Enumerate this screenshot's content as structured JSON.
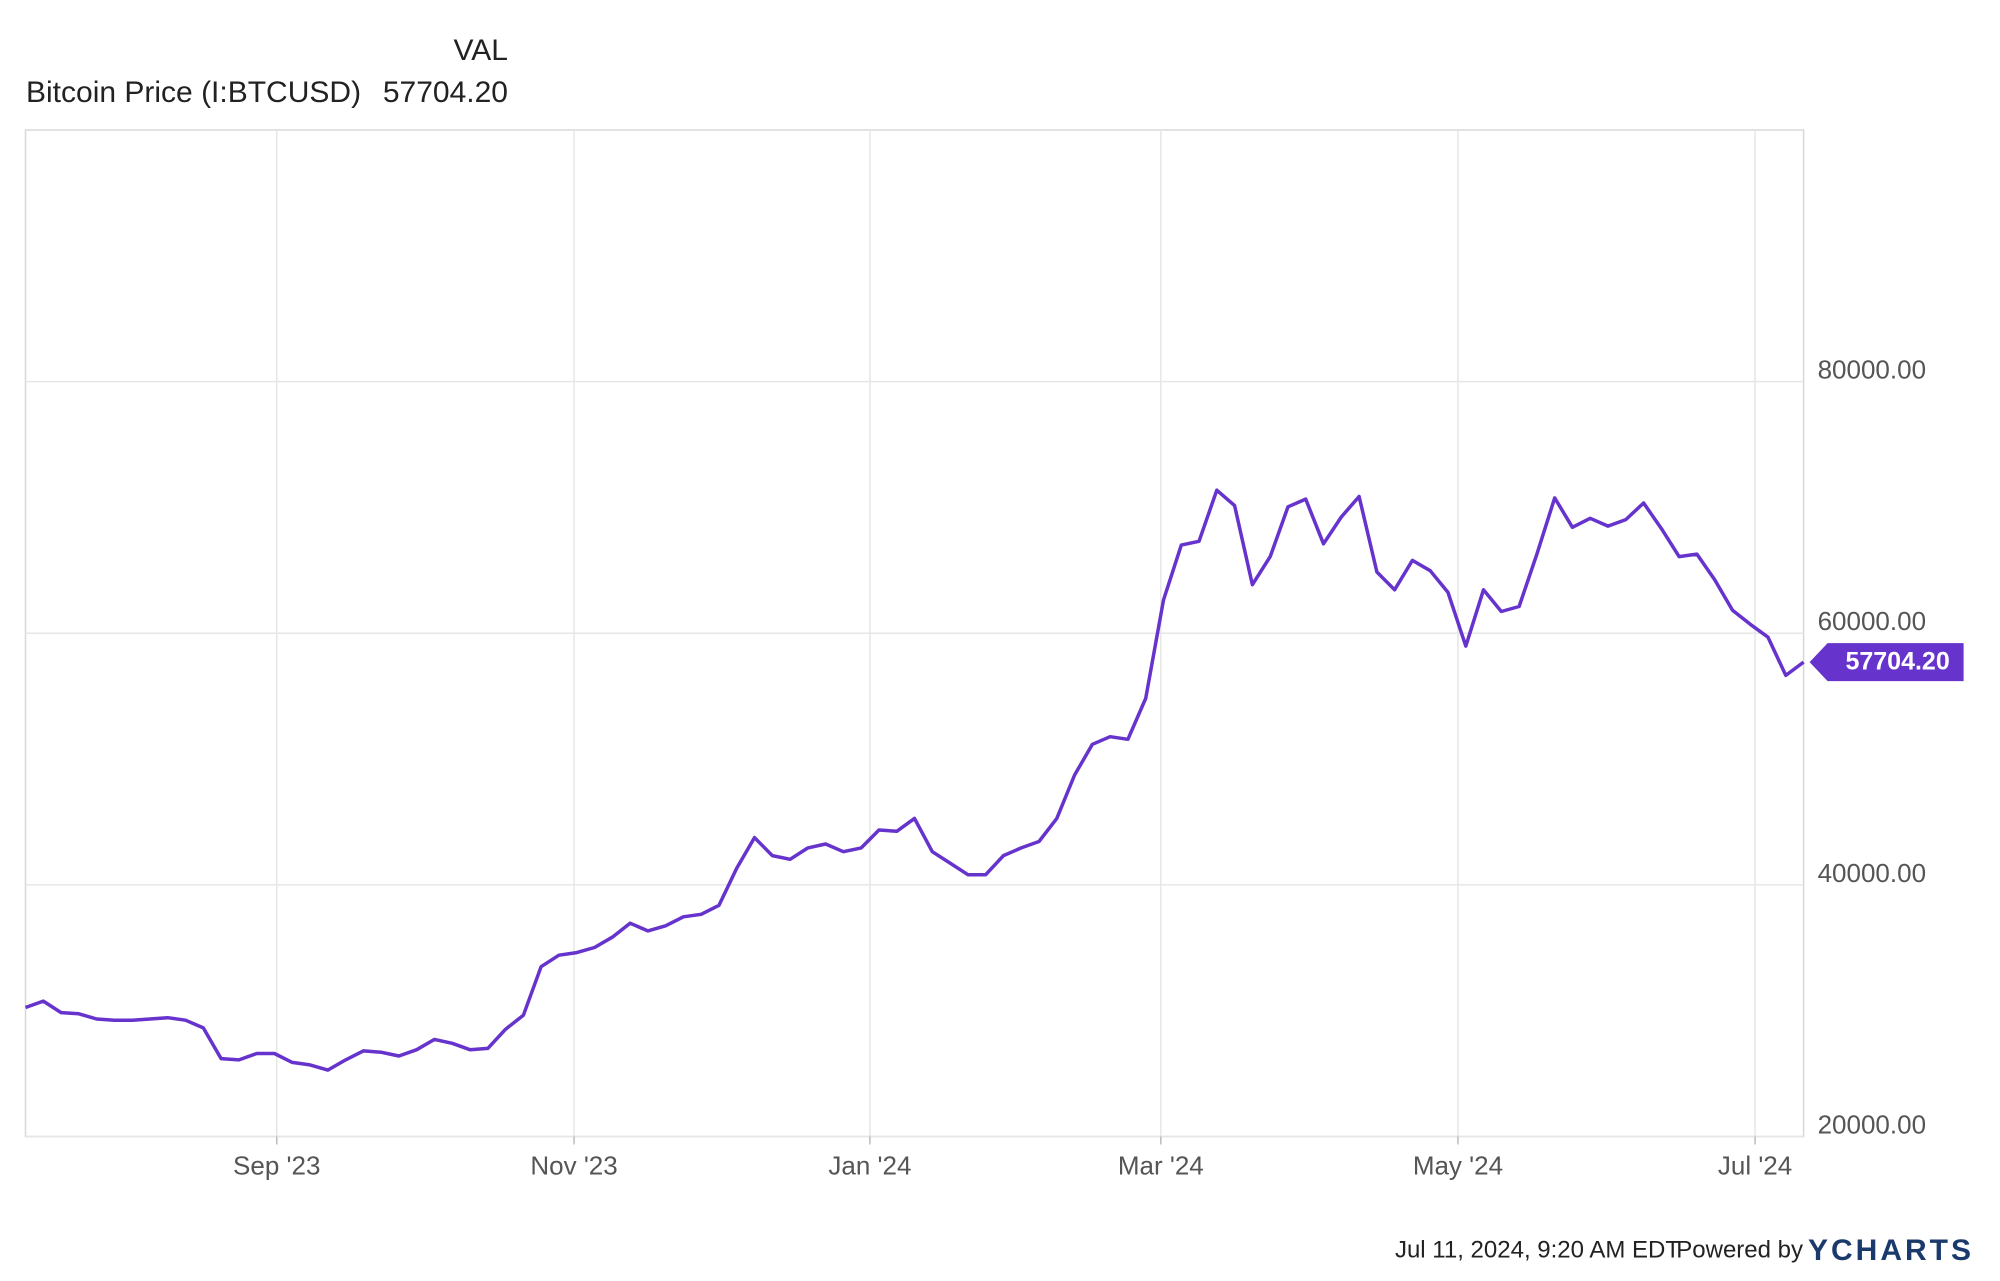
{
  "chart_data": {
    "type": "line",
    "column_label": "VAL",
    "categories": [
      null,
      null,
      null,
      null,
      null,
      null,
      null,
      null,
      null,
      null,
      null,
      null,
      null,
      null,
      null,
      null,
      null,
      null,
      null,
      null,
      null,
      null,
      null,
      null,
      null,
      null,
      null,
      null,
      null,
      null,
      null,
      null,
      null,
      null,
      null,
      null,
      null,
      null,
      null,
      null,
      null,
      null,
      null,
      null,
      null,
      null,
      null,
      null,
      null,
      null,
      null,
      null,
      null,
      null,
      null,
      null,
      null,
      null,
      null,
      null,
      null,
      null,
      null,
      null,
      null,
      null,
      null,
      null,
      null,
      null,
      null,
      null,
      null,
      null,
      null,
      null,
      null,
      null,
      null,
      null,
      null,
      null,
      null,
      null,
      null,
      null,
      null,
      null,
      null,
      null,
      null,
      null,
      null,
      null,
      null,
      null,
      null,
      null,
      null,
      null,
      null
    ],
    "series": [
      {
        "name": "Bitcoin Price (I:BTCUSD)",
        "color": "#6633cc",
        "values": [
          30250,
          30760,
          29850,
          29750,
          29340,
          29240,
          29240,
          29340,
          29440,
          29240,
          28630,
          26190,
          26090,
          26600,
          26600,
          25890,
          25690,
          25280,
          26090,
          26800,
          26700,
          26400,
          26900,
          27720,
          27410,
          26900,
          27000,
          28530,
          29640,
          33500,
          34410,
          34620,
          35020,
          35840,
          36950,
          36340,
          36750,
          37460,
          37660,
          38380,
          41320,
          43760,
          42330,
          42030,
          42940,
          43250,
          42640,
          42940,
          44360,
          44260,
          45280,
          42640,
          41730,
          40810,
          40810,
          42330,
          42940,
          43450,
          45280,
          48730,
          51170,
          51780,
          51570,
          54820,
          62640,
          67010,
          67310,
          71370,
          70150,
          63860,
          66090,
          70050,
          70660,
          67110,
          69240,
          70870,
          64870,
          63450,
          65790,
          64970,
          63250,
          58980,
          63450,
          61730,
          62130,
          66290,
          70760,
          68420,
          69140,
          68520,
          69030,
          70350,
          68320,
          66090,
          66290,
          64260,
          61830,
          60710,
          59690,
          56650,
          57704.2
        ],
        "value_labels": [
          null,
          null,
          null,
          null,
          null,
          null,
          null,
          null,
          null,
          null,
          null,
          null,
          null,
          null,
          null,
          null,
          null,
          null,
          null,
          null,
          null,
          null,
          null,
          null,
          null,
          null,
          null,
          null,
          null,
          null,
          null,
          null,
          null,
          null,
          null,
          null,
          null,
          null,
          null,
          null,
          null,
          null,
          null,
          null,
          null,
          null,
          null,
          null,
          null,
          null,
          null,
          null,
          null,
          null,
          null,
          null,
          null,
          null,
          null,
          null,
          null,
          null,
          null,
          null,
          null,
          null,
          null,
          null,
          null,
          null,
          null,
          null,
          null,
          null,
          null,
          null,
          null,
          null,
          null,
          null,
          null,
          null,
          null,
          null,
          null,
          null,
          null,
          null,
          null,
          null,
          null,
          null,
          null,
          null,
          null,
          null,
          null,
          null,
          null,
          null,
          "57704.20"
        ]
      }
    ],
    "xticks": [
      {
        "value": 14.13,
        "label": "Sep '23"
      },
      {
        "value": 30.85,
        "label": "Nov '23"
      },
      {
        "value": 47.49,
        "label": "Jan '24"
      },
      {
        "value": 63.85,
        "label": "Mar '24"
      },
      {
        "value": 80.56,
        "label": "May '24"
      },
      {
        "value": 97.27,
        "label": "Jul '24"
      }
    ],
    "ylim": [
      20000,
      100000
    ],
    "yticks": [
      {
        "value": 20000,
        "label": "20000.00"
      },
      {
        "value": 40000,
        "label": "40000.00"
      },
      {
        "value": 60000,
        "label": "60000.00"
      },
      {
        "value": 80000,
        "label": "80000.00"
      }
    ],
    "grid": true
  },
  "footer": {
    "timestamp": "Jul 11, 2024, 9:20 AM EDT",
    "powered_by": "Powered by",
    "brand": "YCHARTS"
  }
}
